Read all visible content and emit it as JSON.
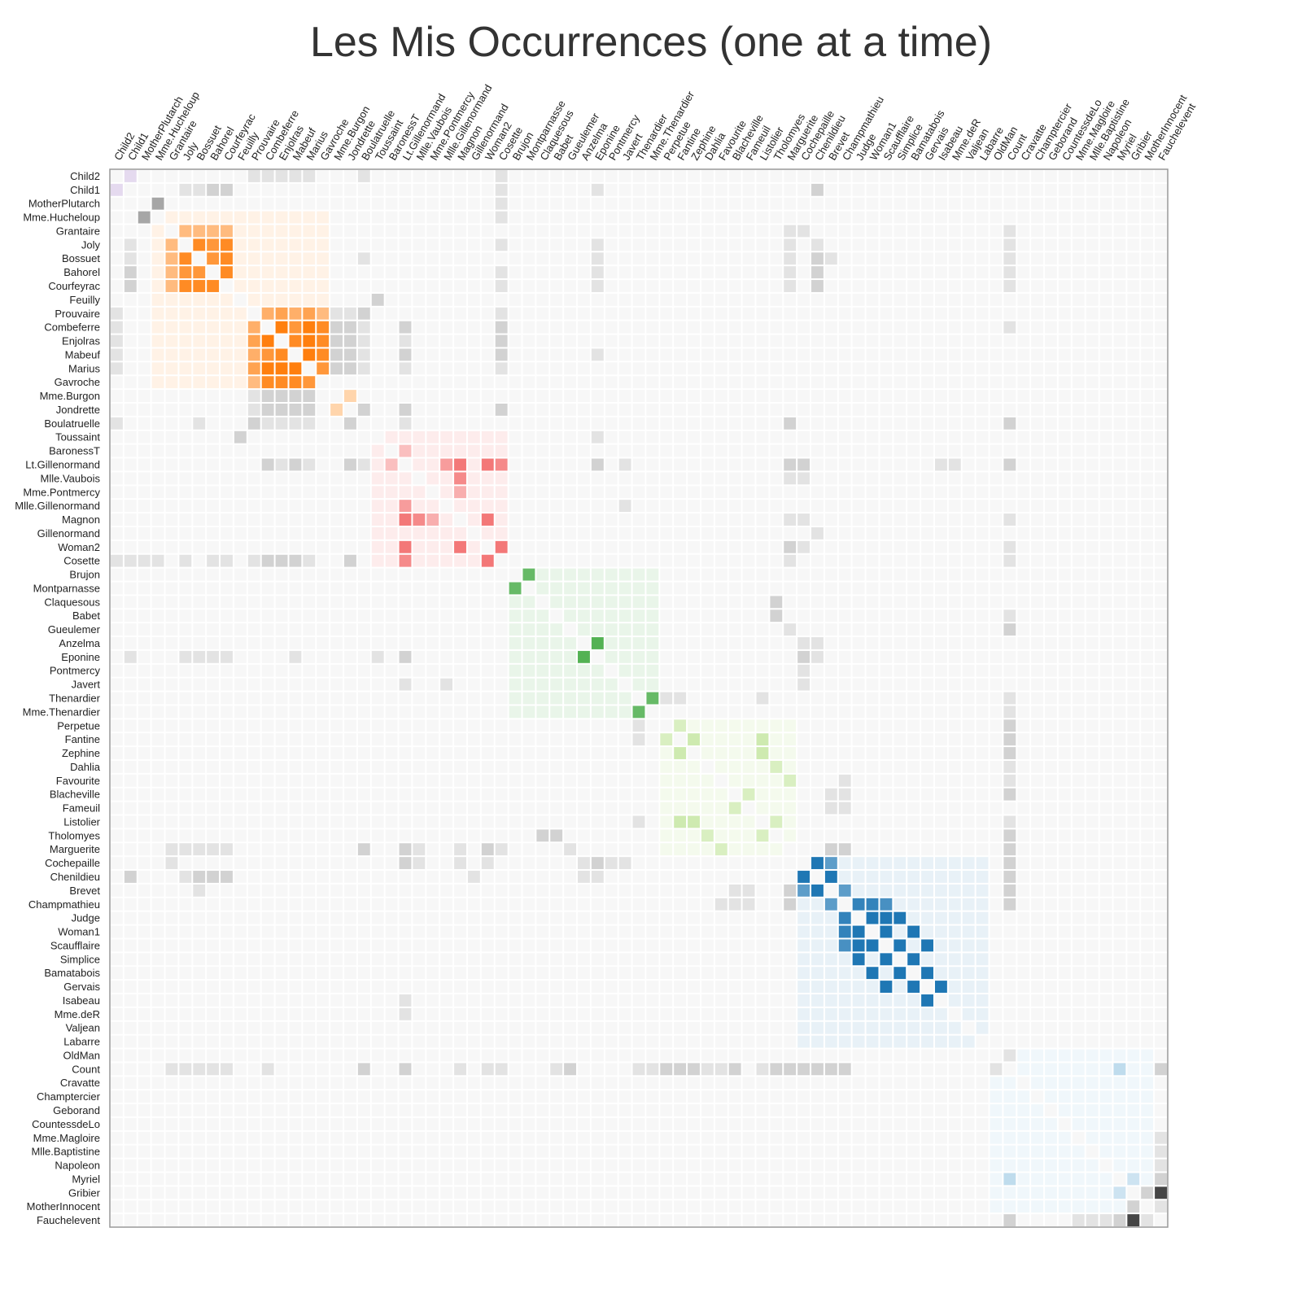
{
  "chart_data": {
    "type": "heatmap",
    "title": "Les Mis Occurrences (one at a time)",
    "nodes": [
      "Child2",
      "Child1",
      "MotherPlutarch",
      "Mme.Hucheloup",
      "Grantaire",
      "Joly",
      "Bossuet",
      "Bahorel",
      "Courfeyrac",
      "Feuilly",
      "Prouvaire",
      "Combeferre",
      "Enjolras",
      "Mabeuf",
      "Marius",
      "Gavroche",
      "Mme.Burgon",
      "Jondrette",
      "Boulatruelle",
      "Toussaint",
      "BaronessT",
      "Lt.Gillenormand",
      "Mlle.Vaubois",
      "Mme.Pontmercy",
      "Mlle.Gillenormand",
      "Magnon",
      "Gillenormand",
      "Woman2",
      "Cosette",
      "Brujon",
      "Montparnasse",
      "Claquesous",
      "Babet",
      "Gueulemer",
      "Anzelma",
      "Eponine",
      "Pontmercy",
      "Javert",
      "Thenardier",
      "Mme.Thenardier",
      "Perpetue",
      "Fantine",
      "Zephine",
      "Dahlia",
      "Favourite",
      "Blacheville",
      "Fameuil",
      "Listolier",
      "Tholomyes",
      "Marguerite",
      "Cochepaille",
      "Chenildieu",
      "Brevet",
      "Champmathieu",
      "Judge",
      "Woman1",
      "Scaufflaire",
      "Simplice",
      "Bamatabois",
      "Gervais",
      "Isabeau",
      "Mme.deR",
      "Valjean",
      "Labarre",
      "OldMan",
      "Count",
      "Cravatte",
      "Champtercier",
      "Geborand",
      "CountessdeLo",
      "Mme.Magloire",
      "Mlle.Baptistine",
      "Napoleon",
      "Myriel",
      "Gribier",
      "MotherInnocent",
      "Fauchelevent"
    ],
    "groups": [
      {
        "start": 0,
        "end": 1,
        "color": "#9467bd"
      },
      {
        "start": 3,
        "end": 15,
        "color": "#ff7f0e"
      },
      {
        "start": 16,
        "end": 17,
        "color": "#ff9f40"
      },
      {
        "start": 19,
        "end": 28,
        "color": "#ef4444"
      },
      {
        "start": 29,
        "end": 39,
        "color": "#2ca02c"
      },
      {
        "start": 40,
        "end": 49,
        "color": "#8fcf4a"
      },
      {
        "start": 50,
        "end": 63,
        "color": "#1f77b4"
      },
      {
        "start": 64,
        "end": 75,
        "color": "#6baed6"
      }
    ],
    "links": [
      [
        0,
        1,
        1
      ],
      [
        2,
        3,
        3
      ],
      [
        5,
        6,
        8
      ],
      [
        5,
        7,
        7
      ],
      [
        5,
        8,
        8
      ],
      [
        6,
        7,
        7
      ],
      [
        6,
        8,
        8
      ],
      [
        7,
        8,
        8
      ],
      [
        4,
        5,
        4
      ],
      [
        4,
        6,
        4
      ],
      [
        4,
        7,
        4
      ],
      [
        4,
        8,
        4
      ],
      [
        10,
        11,
        5
      ],
      [
        10,
        12,
        6
      ],
      [
        10,
        13,
        5
      ],
      [
        10,
        14,
        6
      ],
      [
        10,
        15,
        4
      ],
      [
        11,
        12,
        9
      ],
      [
        11,
        13,
        7
      ],
      [
        11,
        14,
        9
      ],
      [
        11,
        15,
        8
      ],
      [
        12,
        13,
        8
      ],
      [
        12,
        14,
        9
      ],
      [
        12,
        15,
        8
      ],
      [
        13,
        14,
        9
      ],
      [
        13,
        15,
        8
      ],
      [
        14,
        15,
        7
      ],
      [
        16,
        17,
        3
      ],
      [
        21,
        25,
        6
      ],
      [
        21,
        27,
        6
      ],
      [
        21,
        24,
        4
      ],
      [
        22,
        25,
        5
      ],
      [
        25,
        27,
        6
      ],
      [
        27,
        28,
        6
      ],
      [
        20,
        21,
        2
      ],
      [
        21,
        28,
        5
      ],
      [
        23,
        25,
        3
      ],
      [
        29,
        30,
        6
      ],
      [
        34,
        35,
        7
      ],
      [
        38,
        39,
        6
      ],
      [
        41,
        42,
        3
      ],
      [
        40,
        41,
        2
      ],
      [
        41,
        47,
        3
      ],
      [
        42,
        47,
        3
      ],
      [
        45,
        46,
        2
      ],
      [
        47,
        48,
        2
      ],
      [
        43,
        48,
        2
      ],
      [
        44,
        49,
        2
      ],
      [
        50,
        51,
        9
      ],
      [
        50,
        52,
        6
      ],
      [
        51,
        52,
        9
      ],
      [
        53,
        54,
        8
      ],
      [
        54,
        55,
        9
      ],
      [
        54,
        56,
        9
      ],
      [
        54,
        57,
        9
      ],
      [
        55,
        56,
        9
      ],
      [
        55,
        58,
        9
      ],
      [
        56,
        57,
        9
      ],
      [
        56,
        59,
        9
      ],
      [
        57,
        58,
        9
      ],
      [
        58,
        59,
        9
      ],
      [
        59,
        60,
        9
      ],
      [
        53,
        55,
        8
      ],
      [
        53,
        56,
        7
      ],
      [
        52,
        53,
        6
      ],
      [
        65,
        73,
        3
      ],
      [
        73,
        74,
        2
      ],
      [
        74,
        76,
        8
      ]
    ],
    "gray_links": [
      [
        0,
        10,
        1
      ],
      [
        0,
        11,
        1
      ],
      [
        0,
        12,
        1
      ],
      [
        0,
        13,
        1
      ],
      [
        0,
        14,
        1
      ],
      [
        0,
        18,
        1
      ],
      [
        0,
        28,
        1
      ],
      [
        1,
        5,
        1
      ],
      [
        1,
        6,
        1
      ],
      [
        1,
        7,
        2
      ],
      [
        1,
        8,
        2
      ],
      [
        1,
        28,
        1
      ],
      [
        1,
        35,
        1
      ],
      [
        1,
        51,
        2
      ],
      [
        2,
        28,
        1
      ],
      [
        3,
        28,
        1
      ],
      [
        4,
        49,
        1
      ],
      [
        4,
        50,
        1
      ],
      [
        4,
        65,
        1
      ],
      [
        5,
        28,
        1
      ],
      [
        5,
        35,
        1
      ],
      [
        5,
        49,
        1
      ],
      [
        5,
        51,
        1
      ],
      [
        5,
        65,
        1
      ],
      [
        6,
        18,
        1
      ],
      [
        6,
        35,
        1
      ],
      [
        6,
        49,
        1
      ],
      [
        6,
        51,
        2
      ],
      [
        6,
        52,
        1
      ],
      [
        6,
        65,
        1
      ],
      [
        7,
        28,
        1
      ],
      [
        7,
        35,
        1
      ],
      [
        7,
        49,
        1
      ],
      [
        7,
        51,
        2
      ],
      [
        7,
        65,
        1
      ],
      [
        8,
        28,
        1
      ],
      [
        8,
        35,
        1
      ],
      [
        8,
        49,
        1
      ],
      [
        8,
        51,
        2
      ],
      [
        8,
        65,
        1
      ],
      [
        9,
        19,
        2
      ],
      [
        10,
        16,
        1
      ],
      [
        10,
        17,
        1
      ],
      [
        10,
        18,
        2
      ],
      [
        10,
        28,
        1
      ],
      [
        11,
        16,
        2
      ],
      [
        11,
        17,
        2
      ],
      [
        11,
        18,
        1
      ],
      [
        11,
        21,
        2
      ],
      [
        11,
        28,
        2
      ],
      [
        11,
        65,
        1
      ],
      [
        12,
        16,
        2
      ],
      [
        12,
        17,
        2
      ],
      [
        12,
        18,
        1
      ],
      [
        12,
        21,
        1
      ],
      [
        12,
        28,
        2
      ],
      [
        13,
        16,
        2
      ],
      [
        13,
        17,
        2
      ],
      [
        13,
        18,
        1
      ],
      [
        13,
        21,
        2
      ],
      [
        13,
        28,
        2
      ],
      [
        13,
        35,
        1
      ],
      [
        14,
        16,
        2
      ],
      [
        14,
        17,
        2
      ],
      [
        14,
        18,
        1
      ],
      [
        14,
        21,
        1
      ],
      [
        14,
        28,
        1
      ],
      [
        17,
        18,
        2
      ],
      [
        17,
        21,
        2
      ],
      [
        17,
        28,
        2
      ],
      [
        18,
        21,
        1
      ],
      [
        18,
        49,
        2
      ],
      [
        18,
        65,
        2
      ],
      [
        19,
        35,
        1
      ],
      [
        21,
        35,
        2
      ],
      [
        21,
        37,
        1
      ],
      [
        21,
        49,
        2
      ],
      [
        21,
        50,
        2
      ],
      [
        21,
        61,
        1
      ],
      [
        21,
        65,
        2
      ],
      [
        22,
        49,
        1
      ],
      [
        24,
        37,
        1
      ],
      [
        25,
        49,
        1
      ],
      [
        25,
        65,
        1
      ],
      [
        26,
        51,
        1
      ],
      [
        27,
        49,
        2
      ],
      [
        27,
        65,
        1
      ],
      [
        28,
        49,
        1
      ],
      [
        28,
        65,
        1
      ],
      [
        31,
        48,
        2
      ],
      [
        32,
        48,
        2
      ],
      [
        32,
        65,
        1
      ],
      [
        33,
        49,
        1
      ],
      [
        33,
        65,
        2
      ],
      [
        34,
        50,
        1
      ],
      [
        34,
        51,
        1
      ],
      [
        35,
        50,
        2
      ],
      [
        35,
        51,
        1
      ],
      [
        36,
        50,
        1
      ],
      [
        37,
        50,
        1
      ],
      [
        38,
        40,
        1
      ],
      [
        38,
        41,
        1
      ],
      [
        38,
        47,
        1
      ],
      [
        38,
        65,
        1
      ],
      [
        39,
        65,
        1
      ],
      [
        40,
        65,
        2
      ],
      [
        41,
        65,
        2
      ],
      [
        42,
        65,
        2
      ],
      [
        43,
        65,
        1
      ],
      [
        44,
        65,
        1
      ],
      [
        45,
        65,
        2
      ],
      [
        45,
        52,
        1
      ],
      [
        46,
        52,
        1
      ],
      [
        47,
        65,
        1
      ],
      [
        48,
        65,
        2
      ],
      [
        49,
        52,
        2
      ],
      [
        49,
        65,
        2
      ],
      [
        50,
        21,
        2
      ],
      [
        50,
        22,
        1
      ],
      [
        50,
        25,
        1
      ],
      [
        50,
        27,
        1
      ],
      [
        50,
        65,
        2
      ],
      [
        51,
        65,
        2
      ],
      [
        52,
        65,
        2
      ],
      [
        53,
        65,
        2
      ],
      [
        53,
        44,
        1
      ],
      [
        53,
        45,
        1
      ],
      [
        53,
        46,
        1
      ],
      [
        53,
        49,
        2
      ],
      [
        60,
        21,
        1
      ],
      [
        65,
        76,
        2
      ],
      [
        76,
        70,
        1
      ],
      [
        76,
        71,
        1
      ],
      [
        76,
        72,
        1
      ],
      [
        76,
        75,
        1
      ],
      [
        74,
        75,
        2
      ],
      [
        73,
        76,
        2
      ],
      [
        64,
        65,
        1
      ]
    ]
  }
}
